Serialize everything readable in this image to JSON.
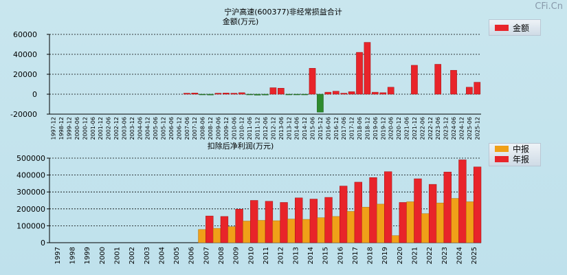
{
  "watermark": "CFi.Cn",
  "chart_data": [
    {
      "type": "bar",
      "title": "宁沪高速(600377)非经常损益合计",
      "subtitle": "金额(万元)",
      "legend": [
        "金额"
      ],
      "ylim": [
        -20000,
        60000
      ],
      "yticks": [
        60000,
        40000,
        20000,
        0,
        -20000
      ],
      "categories": [
        "1997-12",
        "1998-12",
        "1999-12",
        "2000-06",
        "2000-12",
        "2001-06",
        "2001-12",
        "2002-06",
        "2002-12",
        "2003-06",
        "2003-12",
        "2004-06",
        "2004-12",
        "2005-06",
        "2005-12",
        "2006-06",
        "2006-12",
        "2007-06",
        "2007-12",
        "2008-06",
        "2008-12",
        "2009-06",
        "2009-12",
        "2010-06",
        "2010-12",
        "2011-06",
        "2011-12",
        "2012-06",
        "2012-12",
        "2013-06",
        "2013-12",
        "2014-06",
        "2014-12",
        "2015-06",
        "2015-12",
        "2016-06",
        "2016-12",
        "2017-06",
        "2017-12",
        "2018-06",
        "2018-12",
        "2019-06",
        "2019-12",
        "2020-06",
        "2020-12",
        "2021-06",
        "2021-12",
        "2022-06",
        "2022-12",
        "2023-06",
        "2023-12",
        "2024-06",
        "2024-12",
        "2025-06",
        "2025-12"
      ],
      "values": [
        0,
        0,
        0,
        0,
        0,
        0,
        0,
        0,
        0,
        0,
        0,
        0,
        0,
        0,
        0,
        0,
        0,
        1000,
        1200,
        -500,
        -800,
        1000,
        1200,
        1000,
        1500,
        -500,
        -1000,
        -800,
        6500,
        6000,
        -400,
        -500,
        -700,
        26000,
        -18000,
        2000,
        3000,
        1000,
        2500,
        42000,
        52000,
        2000,
        1500,
        7000,
        0,
        0,
        29000,
        0,
        0,
        30000,
        0,
        24000,
        0,
        7000,
        12000
      ]
    },
    {
      "type": "bar",
      "title": "扣除后净利润(万元)",
      "legend": [
        "中报",
        "年报"
      ],
      "ylim": [
        0,
        500000
      ],
      "yticks": [
        500000,
        400000,
        300000,
        200000,
        100000,
        0
      ],
      "categories": [
        "1997",
        "1998",
        "1999",
        "2000",
        "2001",
        "2002",
        "2003",
        "2004",
        "2005",
        "2006",
        "2007",
        "2008",
        "2009",
        "2010",
        "2011",
        "2012",
        "2013",
        "2014",
        "2015",
        "2016",
        "2017",
        "2018",
        "2019",
        "2020",
        "2021",
        "2022",
        "2023",
        "2024",
        "2025"
      ],
      "series": [
        {
          "name": "中报",
          "values": [
            0,
            0,
            0,
            0,
            0,
            0,
            0,
            0,
            0,
            0,
            78000,
            85000,
            95000,
            128000,
            132000,
            130000,
            140000,
            138000,
            148000,
            155000,
            185000,
            210000,
            228000,
            42000,
            242000,
            172000,
            235000,
            262000,
            242000
          ]
        },
        {
          "name": "年报",
          "values": [
            0,
            0,
            0,
            0,
            0,
            0,
            0,
            0,
            0,
            0,
            158000,
            155000,
            198000,
            250000,
            245000,
            238000,
            265000,
            258000,
            268000,
            335000,
            358000,
            385000,
            420000,
            238000,
            378000,
            345000,
            418000,
            490000,
            448000
          ]
        }
      ]
    }
  ],
  "colors": {
    "red": "#e8242a",
    "orange": "#f0a018",
    "green": "#2e8b2e"
  }
}
